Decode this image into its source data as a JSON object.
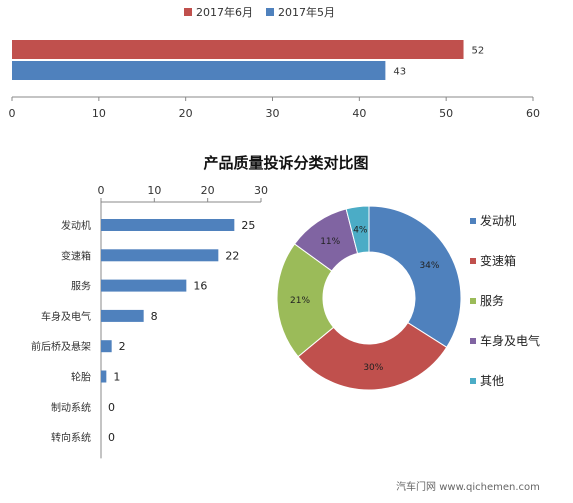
{
  "chart_data": [
    {
      "type": "bar",
      "orientation": "horizontal",
      "legend_position": "top",
      "series": [
        {
          "name": "2017年6月",
          "color": "#c0504d",
          "values": [
            52
          ]
        },
        {
          "name": "2017年5月",
          "color": "#4f81bd",
          "values": [
            43
          ]
        }
      ],
      "xlim": [
        0,
        60
      ],
      "xticks": [
        0,
        10,
        20,
        30,
        40,
        50,
        60
      ],
      "grid": false
    },
    {
      "type": "bar",
      "orientation": "horizontal",
      "title": "产品质量投诉分类对比图",
      "categories": [
        "发动机",
        "变速箱",
        "服务",
        "车身及电气",
        "前后桥及悬架",
        "轮胎",
        "制动系统",
        "转向系统"
      ],
      "values": [
        25,
        22,
        16,
        8,
        2,
        1,
        0,
        0
      ],
      "color": "#4f81bd",
      "xlim": [
        0,
        30
      ],
      "xticks": [
        0,
        10,
        20,
        30
      ],
      "axis_position": "top",
      "grid": false
    },
    {
      "type": "pie",
      "donut": true,
      "labels": [
        "发动机",
        "变速箱",
        "服务",
        "车身及电气",
        "其他"
      ],
      "values": [
        34,
        30,
        21,
        11,
        4
      ],
      "value_labels": [
        "34%",
        "30%",
        "21%",
        "11%",
        "4%"
      ],
      "colors": [
        "#4f81bd",
        "#c0504d",
        "#9bbb59",
        "#8064a2",
        "#4bacc6"
      ],
      "legend_position": "right"
    }
  ],
  "watermark": "汽车门网 www.qichemen.com"
}
